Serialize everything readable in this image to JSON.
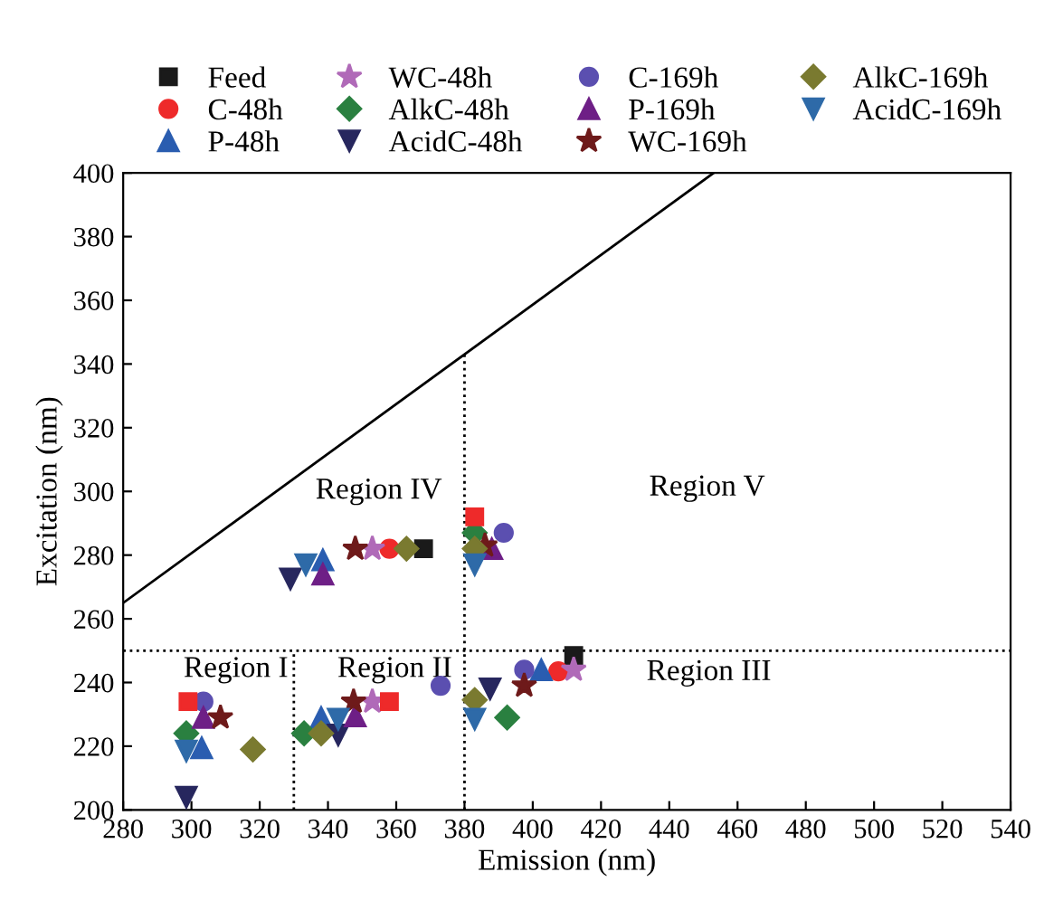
{
  "chart_data": {
    "type": "scatter",
    "xlabel": "Emission (nm)",
    "ylabel": "Excitation (nm)",
    "xlim": [
      280,
      540
    ],
    "ylim": [
      200,
      400
    ],
    "xticks": [
      280,
      300,
      320,
      340,
      360,
      380,
      400,
      420,
      440,
      460,
      480,
      500,
      520,
      540
    ],
    "yticks": [
      200,
      220,
      240,
      260,
      280,
      300,
      320,
      340,
      360,
      380,
      400
    ],
    "grid": false,
    "legend": "top",
    "series": [
      {
        "type": "line",
        "line_style": "solid",
        "color": "#000000",
        "x": [
          280,
          453
        ],
        "values": [
          265,
          400
        ]
      },
      {
        "type": "line",
        "line_style": "dotted",
        "color": "#000000",
        "x": [
          330,
          330
        ],
        "values": [
          200,
          250
        ]
      },
      {
        "type": "line",
        "line_style": "dotted",
        "color": "#000000",
        "x": [
          380,
          380
        ],
        "values": [
          200,
          343
        ]
      },
      {
        "type": "line",
        "line_style": "dotted",
        "color": "#000000",
        "x": [
          280,
          540
        ],
        "values": [
          250,
          250
        ]
      },
      {
        "name": "Feed",
        "marker": "square",
        "color": "#1a1a1a",
        "x": [
          368,
          412
        ],
        "values": [
          282,
          248.5
        ]
      },
      {
        "name": "C-48h",
        "marker": "circle",
        "color": "#ee2a2a",
        "x": [
          358,
          407.5
        ],
        "values": [
          282,
          243.5
        ]
      },
      {
        "name": "P-48h",
        "marker": "triangle",
        "color": "#2a5db0",
        "x": [
          303,
          338,
          338.5,
          402.5
        ],
        "values": [
          219.5,
          229,
          278.5,
          244
        ]
      },
      {
        "name": "WC-48h",
        "marker": "star",
        "color": "#b06ab8",
        "x": [
          353,
          353,
          412
        ],
        "values": [
          234,
          282,
          244
        ]
      },
      {
        "name": "AlkC-48h",
        "marker": "diamond",
        "color": "#2a8040",
        "x": [
          298.5,
          333,
          348,
          383,
          392.5
        ],
        "values": [
          224,
          224,
          null,
          287,
          229
        ]
      },
      {
        "name": "AcidC-48h",
        "marker": "triangle_down",
        "color": "#27275e",
        "x": [
          298.5,
          343,
          329,
          387.5
        ],
        "values": [
          204,
          223.5,
          272.5,
          238
        ]
      },
      {
        "name": "C-169h",
        "marker": "circle",
        "color": "#5b4fb0",
        "x": [
          303.5,
          373,
          391.5,
          397.5
        ],
        "values": [
          234,
          239,
          287,
          244
        ]
      },
      {
        "name": "P-169h",
        "marker": "triangle",
        "color": "#6e1f86",
        "x": [
          303.5,
          348,
          338.5,
          388
        ],
        "values": [
          229,
          229.5,
          274,
          282
        ]
      },
      {
        "name": "WC-169h",
        "marker": "star",
        "color": "#6e1a1a",
        "x": [
          308.5,
          347.5,
          348,
          386,
          397.5
        ],
        "values": [
          229,
          234,
          282,
          283,
          239
        ]
      },
      {
        "name": "AlkC-169h",
        "marker": "diamond",
        "color": "#7a7a30",
        "x": [
          318,
          338,
          363,
          383,
          383
        ],
        "values": [
          219,
          224,
          282,
          282,
          234.5
        ]
      },
      {
        "name": "AcidC-169h",
        "marker": "triangle_down",
        "color": "#2e6aa8",
        "x": [
          298.5,
          343,
          333.5,
          383,
          383
        ],
        "values": [
          218.5,
          228.5,
          277,
          277,
          228.5
        ]
      },
      {
        "marker": "square",
        "color": "#ee2a2a",
        "x": [
          299,
          358,
          383
        ],
        "values": [
          234,
          234,
          292
        ]
      }
    ],
    "annotations": [
      "Region I",
      "Region II",
      "Region III",
      "Region IV",
      "Region V"
    ]
  }
}
